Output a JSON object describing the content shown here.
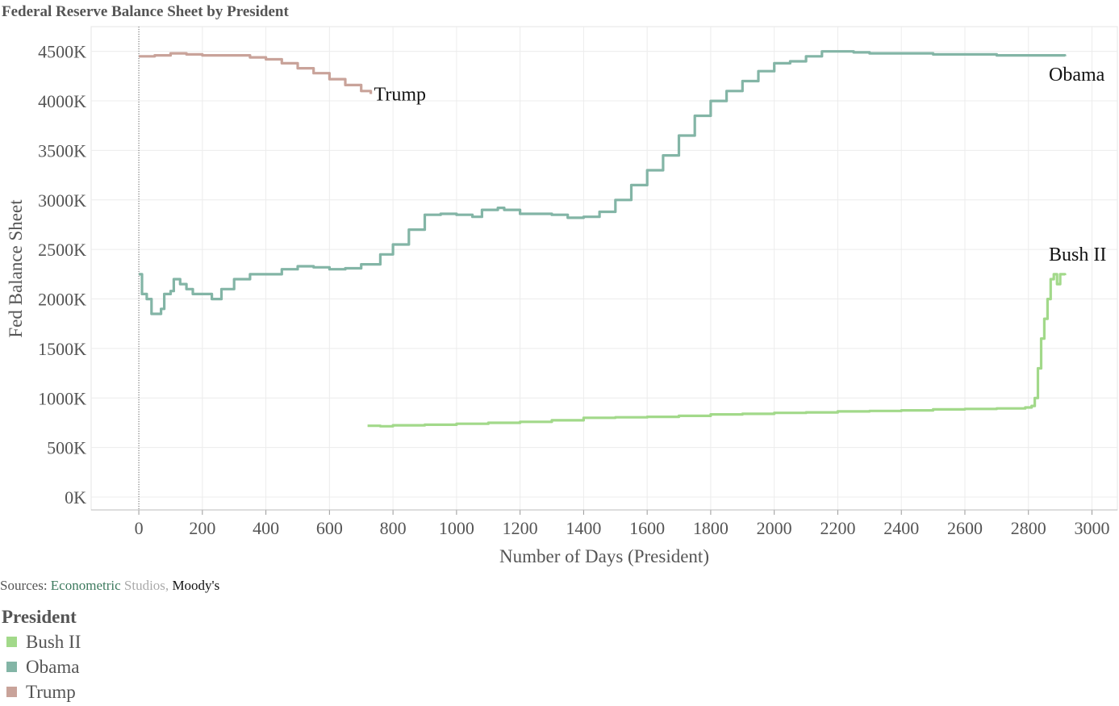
{
  "title": "Federal Reserve Balance Sheet by President",
  "sources": {
    "label": "Sources:",
    "part1": "Econometric",
    "part2": "Studios,",
    "part3": "Moody's"
  },
  "legend": {
    "title": "President",
    "items": [
      {
        "label": "Bush II",
        "color": "#a2d98a"
      },
      {
        "label": "Obama",
        "color": "#83b5a6"
      },
      {
        "label": "Trump",
        "color": "#c9a39a"
      }
    ]
  },
  "chart_data": {
    "type": "line",
    "title": "Federal Reserve Balance Sheet by President",
    "xlabel": "Number of Days (President)",
    "ylabel": "Fed Balance Sheet",
    "xlim": [
      -150,
      3080
    ],
    "ylim": [
      -130,
      4750
    ],
    "x_ticks": [
      0,
      200,
      400,
      600,
      800,
      1000,
      1200,
      1400,
      1600,
      1800,
      2000,
      2200,
      2400,
      2600,
      2800,
      3000
    ],
    "y_ticks": [
      0,
      500,
      1000,
      1500,
      2000,
      2500,
      3000,
      3500,
      4000,
      4500
    ],
    "y_tick_labels": [
      "0K",
      "500K",
      "1000K",
      "1500K",
      "2000K",
      "2500K",
      "3000K",
      "3500K",
      "4000K",
      "4500K"
    ],
    "grid": true,
    "legend_position": "bottom-left",
    "series": [
      {
        "name": "Bush II",
        "color": "#a2d98a",
        "points": [
          [
            720,
            720
          ],
          [
            760,
            715
          ],
          [
            800,
            725
          ],
          [
            900,
            730
          ],
          [
            1000,
            740
          ],
          [
            1100,
            750
          ],
          [
            1200,
            760
          ],
          [
            1300,
            775
          ],
          [
            1400,
            800
          ],
          [
            1500,
            805
          ],
          [
            1600,
            810
          ],
          [
            1700,
            820
          ],
          [
            1800,
            835
          ],
          [
            1900,
            840
          ],
          [
            2000,
            850
          ],
          [
            2100,
            855
          ],
          [
            2200,
            865
          ],
          [
            2300,
            870
          ],
          [
            2400,
            875
          ],
          [
            2500,
            885
          ],
          [
            2600,
            890
          ],
          [
            2700,
            895
          ],
          [
            2790,
            905
          ],
          [
            2810,
            920
          ],
          [
            2820,
            1000
          ],
          [
            2830,
            1300
          ],
          [
            2840,
            1600
          ],
          [
            2850,
            1800
          ],
          [
            2860,
            2000
          ],
          [
            2870,
            2200
          ],
          [
            2880,
            2250
          ],
          [
            2890,
            2150
          ],
          [
            2900,
            2250
          ],
          [
            2915,
            2240
          ]
        ]
      },
      {
        "name": "Obama",
        "color": "#83b5a6",
        "points": [
          [
            0,
            2250
          ],
          [
            10,
            2050
          ],
          [
            25,
            2000
          ],
          [
            40,
            1850
          ],
          [
            55,
            1850
          ],
          [
            70,
            1900
          ],
          [
            80,
            2050
          ],
          [
            100,
            2080
          ],
          [
            110,
            2200
          ],
          [
            130,
            2150
          ],
          [
            150,
            2100
          ],
          [
            170,
            2050
          ],
          [
            200,
            2050
          ],
          [
            230,
            2000
          ],
          [
            260,
            2100
          ],
          [
            300,
            2200
          ],
          [
            350,
            2250
          ],
          [
            400,
            2250
          ],
          [
            450,
            2300
          ],
          [
            500,
            2330
          ],
          [
            550,
            2320
          ],
          [
            600,
            2300
          ],
          [
            650,
            2310
          ],
          [
            700,
            2350
          ],
          [
            760,
            2450
          ],
          [
            800,
            2550
          ],
          [
            850,
            2700
          ],
          [
            900,
            2850
          ],
          [
            950,
            2860
          ],
          [
            1000,
            2850
          ],
          [
            1050,
            2830
          ],
          [
            1080,
            2900
          ],
          [
            1130,
            2920
          ],
          [
            1150,
            2900
          ],
          [
            1200,
            2860
          ],
          [
            1250,
            2860
          ],
          [
            1300,
            2850
          ],
          [
            1350,
            2820
          ],
          [
            1400,
            2830
          ],
          [
            1450,
            2880
          ],
          [
            1500,
            3000
          ],
          [
            1550,
            3150
          ],
          [
            1600,
            3300
          ],
          [
            1650,
            3450
          ],
          [
            1700,
            3650
          ],
          [
            1750,
            3850
          ],
          [
            1800,
            4000
          ],
          [
            1850,
            4100
          ],
          [
            1900,
            4200
          ],
          [
            1950,
            4300
          ],
          [
            2000,
            4380
          ],
          [
            2050,
            4400
          ],
          [
            2100,
            4450
          ],
          [
            2150,
            4500
          ],
          [
            2200,
            4500
          ],
          [
            2250,
            4490
          ],
          [
            2300,
            4480
          ],
          [
            2400,
            4480
          ],
          [
            2500,
            4470
          ],
          [
            2600,
            4470
          ],
          [
            2700,
            4460
          ],
          [
            2800,
            4460
          ],
          [
            2915,
            4450
          ]
        ]
      },
      {
        "name": "Trump",
        "color": "#c9a39a",
        "points": [
          [
            0,
            4450
          ],
          [
            50,
            4460
          ],
          [
            100,
            4480
          ],
          [
            150,
            4470
          ],
          [
            200,
            4460
          ],
          [
            250,
            4460
          ],
          [
            300,
            4460
          ],
          [
            350,
            4440
          ],
          [
            400,
            4420
          ],
          [
            450,
            4380
          ],
          [
            500,
            4330
          ],
          [
            550,
            4280
          ],
          [
            600,
            4220
          ],
          [
            650,
            4160
          ],
          [
            700,
            4100
          ],
          [
            730,
            4070
          ]
        ]
      }
    ],
    "annotations": [
      {
        "series": "Trump",
        "text": "Trump"
      },
      {
        "series": "Obama",
        "text": "Obama"
      },
      {
        "series": "Bush II",
        "text": "Bush II"
      }
    ]
  }
}
